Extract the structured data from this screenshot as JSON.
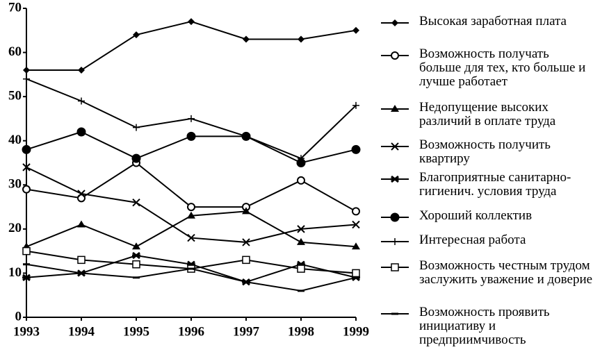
{
  "chart_data": {
    "type": "line",
    "categories": [
      "1993",
      "1994",
      "1995",
      "1996",
      "1997",
      "1998",
      "1999"
    ],
    "ylim": [
      0,
      70
    ],
    "yticks": [
      0,
      10,
      20,
      30,
      40,
      50,
      60,
      70
    ],
    "series": [
      {
        "name": "Высокая заработная плата",
        "color": "#000000",
        "marker": "diamond",
        "values": [
          56,
          56,
          64,
          67,
          63,
          63,
          65
        ]
      },
      {
        "name": "Возможность получать больше для тех, кто больше и лучше работает",
        "color": "#000000",
        "marker": "open-circle",
        "values": [
          29,
          27,
          35,
          25,
          25,
          31,
          24
        ]
      },
      {
        "name": "Недопущение высоких различий в оплате труда",
        "color": "#000000",
        "marker": "triangle",
        "values": [
          16,
          21,
          16,
          23,
          24,
          17,
          16
        ]
      },
      {
        "name": "Возможность получить квартиру",
        "color": "#000000",
        "marker": "x",
        "values": [
          34,
          28,
          26,
          18,
          17,
          20,
          21
        ]
      },
      {
        "name": "Благоприятные санитарно-гигиенич. условия труда",
        "color": "#000000",
        "marker": "thick-x",
        "values": [
          9,
          10,
          14,
          12,
          8,
          12,
          9
        ]
      },
      {
        "name": "Хороший коллектив",
        "color": "#000000",
        "marker": "circle",
        "values": [
          38,
          42,
          36,
          41,
          41,
          35,
          38
        ]
      },
      {
        "name": "Интересная работа",
        "color": "#000000",
        "marker": "plus",
        "values": [
          54,
          49,
          43,
          45,
          41,
          36,
          48
        ]
      },
      {
        "name": "Возможность честным трудом заслужить уважение и доверие",
        "color": "#000000",
        "marker": "open-square",
        "values": [
          15,
          13,
          12,
          11,
          13,
          11,
          10
        ]
      },
      {
        "name": "Возможность проявить инициативу и предприимчивость",
        "color": "#000000",
        "marker": "dash",
        "values": [
          12,
          10,
          9,
          11,
          8,
          6,
          9
        ]
      }
    ]
  }
}
